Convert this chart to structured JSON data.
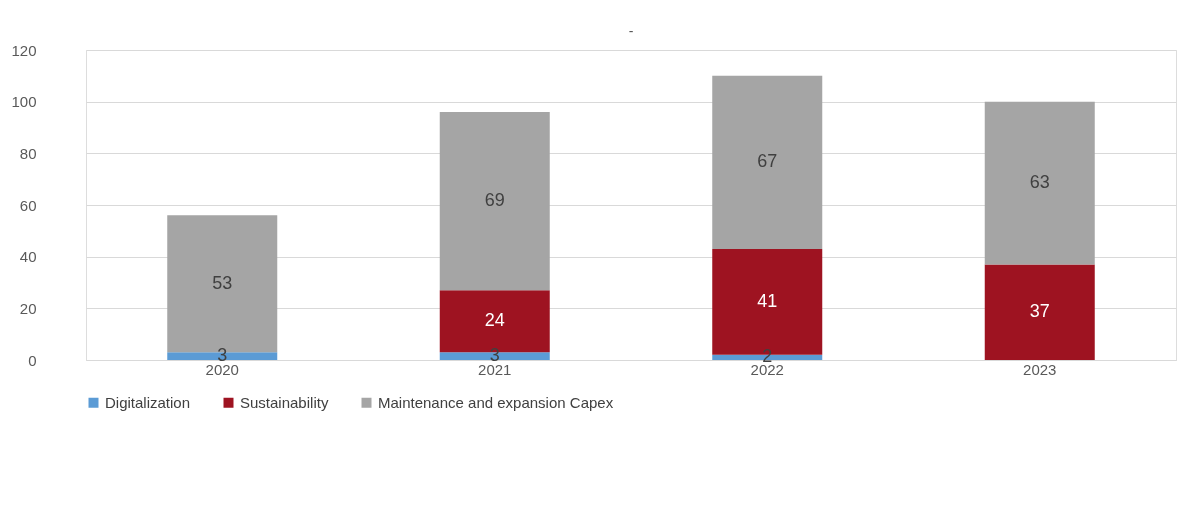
{
  "chart_data": {
    "type": "bar",
    "title": "-",
    "stacked": true,
    "categories": [
      "2020",
      "2021",
      "2022",
      "2023"
    ],
    "series": [
      {
        "name": "Digitalization",
        "color": "#5b9bd5",
        "values": [
          3,
          3,
          2,
          null
        ]
      },
      {
        "name": "Sustainability",
        "color": "#9e1321",
        "values": [
          null,
          24,
          41,
          37
        ]
      },
      {
        "name": "Maintenance and expansion Capex",
        "color": "#a5a5a5",
        "values": [
          53,
          69,
          67,
          63
        ]
      }
    ],
    "ylim": [
      0,
      120
    ],
    "yticks": [
      0,
      20,
      40,
      60,
      80,
      100,
      120
    ],
    "grid": "y",
    "legend": "bottom",
    "data_labels": true
  }
}
